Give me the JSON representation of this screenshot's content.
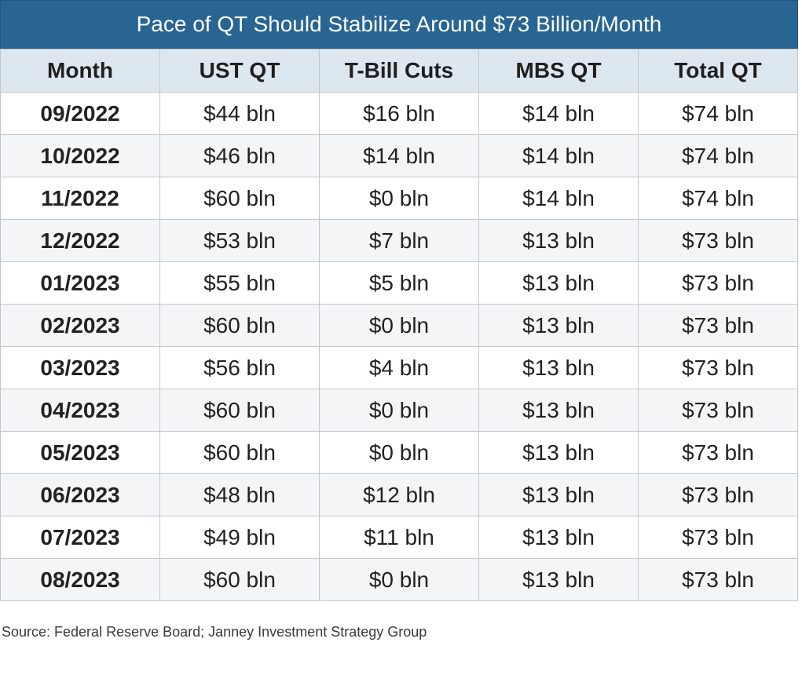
{
  "chart_data": {
    "type": "table",
    "title": "Pace of QT Should Stabilize Around $73 Billion/Month",
    "columns": [
      "Month",
      "UST QT",
      "T-Bill Cuts",
      "MBS QT",
      "Total QT"
    ],
    "rows": [
      [
        "09/2022",
        "$44 bln",
        "$16 bln",
        "$14 bln",
        "$74 bln"
      ],
      [
        "10/2022",
        "$46 bln",
        "$14 bln",
        "$14 bln",
        "$74 bln"
      ],
      [
        "11/2022",
        "$60 bln",
        "$0 bln",
        "$14 bln",
        "$74 bln"
      ],
      [
        "12/2022",
        "$53 bln",
        "$7 bln",
        "$13 bln",
        "$73 bln"
      ],
      [
        "01/2023",
        "$55 bln",
        "$5 bln",
        "$13 bln",
        "$73 bln"
      ],
      [
        "02/2023",
        "$60 bln",
        "$0 bln",
        "$13 bln",
        "$73 bln"
      ],
      [
        "03/2023",
        "$56 bln",
        "$4 bln",
        "$13 bln",
        "$73 bln"
      ],
      [
        "04/2023",
        "$60 bln",
        "$0 bln",
        "$13 bln",
        "$73 bln"
      ],
      [
        "05/2023",
        "$60 bln",
        "$0 bln",
        "$13 bln",
        "$73 bln"
      ],
      [
        "06/2023",
        "$48 bln",
        "$12 bln",
        "$13 bln",
        "$73 bln"
      ],
      [
        "07/2023",
        "$49 bln",
        "$11 bln",
        "$13 bln",
        "$73 bln"
      ],
      [
        "08/2023",
        "$60 bln",
        "$0 bln",
        "$13 bln",
        "$73 bln"
      ]
    ],
    "source": "Source: Federal Reserve Board; Janney Investment Strategy Group",
    "colors": {
      "title_background": "#286593",
      "header_background": "#dde7f0",
      "alternate_row_background": "#f4f5f7"
    }
  }
}
